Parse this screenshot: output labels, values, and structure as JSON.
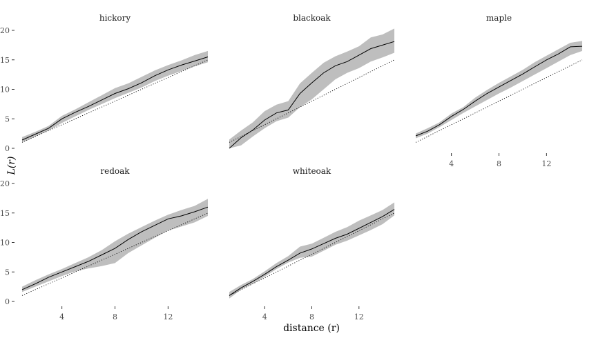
{
  "chart_data": {
    "type": "line",
    "layout": "facet-grid",
    "xlabel": "distance (r)",
    "ylabel": "L(r)",
    "xlim": [
      1,
      15
    ],
    "ylim": [
      0,
      20
    ],
    "x_ticks": [
      4,
      8,
      12
    ],
    "x_tick_labels": [
      "4",
      "8",
      "12"
    ],
    "y_ticks": [
      0,
      5,
      10,
      15,
      20
    ],
    "y_tick_labels": [
      "0",
      "5",
      "10",
      "15",
      "20"
    ],
    "grid": false,
    "colors": {
      "line": "#000000",
      "envelope": "#bebebe",
      "theoretical": "#000000"
    },
    "panels": [
      {
        "title": "hickory",
        "x": [
          1,
          2,
          3,
          4,
          5,
          6,
          7,
          8,
          9,
          10,
          11,
          12,
          13,
          14,
          15
        ],
        "observed": [
          1.4,
          2.4,
          3.4,
          5.0,
          6.1,
          7.1,
          8.2,
          9.3,
          10.1,
          11.1,
          12.3,
          13.3,
          14.1,
          14.8,
          15.5
        ],
        "envelope_low": [
          1.0,
          2.0,
          3.0,
          4.3,
          5.4,
          6.5,
          7.5,
          8.5,
          9.4,
          10.3,
          11.4,
          12.3,
          13.1,
          13.9,
          14.6
        ],
        "envelope_high": [
          1.9,
          2.8,
          3.8,
          5.5,
          6.6,
          7.8,
          9.0,
          10.2,
          11.0,
          12.1,
          13.2,
          14.1,
          14.9,
          15.8,
          16.5
        ],
        "theoretical": [
          1,
          2,
          3,
          4,
          5,
          6,
          7,
          8,
          9,
          10,
          11,
          12,
          13,
          14,
          15
        ]
      },
      {
        "title": "blackoak",
        "x": [
          1,
          2,
          3,
          4,
          5,
          6,
          7,
          8,
          9,
          10,
          11,
          12,
          13,
          14,
          15
        ],
        "observed": [
          0.0,
          1.8,
          3.1,
          4.8,
          6.0,
          6.5,
          9.3,
          11.1,
          12.8,
          14.0,
          14.7,
          15.8,
          16.9,
          17.5,
          18.1
        ],
        "envelope_low": [
          0.0,
          0.5,
          2.0,
          3.4,
          4.6,
          5.2,
          7.0,
          8.3,
          10.0,
          11.7,
          12.8,
          13.6,
          14.7,
          15.4,
          16.2
        ],
        "envelope_high": [
          1.5,
          3.0,
          4.4,
          6.3,
          7.4,
          8.0,
          11.0,
          12.8,
          14.5,
          15.6,
          16.4,
          17.3,
          18.8,
          19.3,
          20.3
        ],
        "theoretical": [
          1,
          2,
          3,
          4,
          5,
          6,
          7,
          8,
          9,
          10,
          11,
          12,
          13,
          14,
          15
        ]
      },
      {
        "title": "maple",
        "x": [
          1,
          2,
          3,
          4,
          5,
          6,
          7,
          8,
          9,
          10,
          11,
          12,
          13,
          14,
          15
        ],
        "observed": [
          2.1,
          2.9,
          4.0,
          5.4,
          6.6,
          8.0,
          9.3,
          10.4,
          11.5,
          12.6,
          13.8,
          15.0,
          16.0,
          17.2,
          17.3
        ],
        "envelope_low": [
          1.7,
          2.5,
          3.6,
          4.8,
          6.0,
          7.1,
          8.2,
          9.3,
          10.3,
          11.4,
          12.5,
          13.6,
          14.7,
          15.8,
          16.5
        ],
        "envelope_high": [
          2.5,
          3.4,
          4.4,
          5.9,
          7.0,
          8.6,
          9.9,
          11.1,
          12.2,
          13.3,
          14.6,
          15.7,
          16.8,
          17.9,
          18.2
        ],
        "theoretical": [
          1,
          2,
          3,
          4,
          5,
          6,
          7,
          8,
          9,
          10,
          11,
          12,
          13,
          14,
          15
        ]
      },
      {
        "title": "redoak",
        "x": [
          1,
          2,
          3,
          4,
          5,
          6,
          7,
          8,
          9,
          10,
          11,
          12,
          13,
          14,
          15
        ],
        "observed": [
          2.0,
          3.0,
          4.1,
          5.0,
          5.9,
          6.8,
          7.9,
          9.0,
          10.5,
          11.8,
          12.9,
          14.0,
          14.5,
          15.2,
          16.0
        ],
        "envelope_low": [
          1.6,
          2.5,
          3.4,
          4.3,
          5.1,
          5.6,
          6.0,
          6.5,
          8.2,
          9.5,
          10.8,
          12.0,
          12.7,
          13.4,
          14.5
        ],
        "envelope_high": [
          2.5,
          3.6,
          4.6,
          5.5,
          6.5,
          7.5,
          8.7,
          10.2,
          11.5,
          12.6,
          13.7,
          14.7,
          15.5,
          16.2,
          17.4
        ],
        "theoretical": [
          1,
          2,
          3,
          4,
          5,
          6,
          7,
          8,
          9,
          10,
          11,
          12,
          13,
          14,
          15
        ]
      },
      {
        "title": "whiteoak",
        "x": [
          1,
          2,
          3,
          4,
          5,
          6,
          7,
          8,
          9,
          10,
          11,
          12,
          13,
          14,
          15
        ],
        "observed": [
          1.0,
          2.3,
          3.4,
          4.6,
          5.9,
          7.0,
          8.2,
          8.9,
          9.8,
          10.7,
          11.4,
          12.4,
          13.4,
          14.4,
          15.6
        ],
        "envelope_low": [
          0.5,
          2.0,
          3.0,
          4.2,
          5.5,
          6.6,
          7.4,
          7.6,
          8.6,
          9.6,
          10.3,
          11.2,
          12.1,
          13.1,
          14.6
        ],
        "envelope_high": [
          1.6,
          2.8,
          3.8,
          5.1,
          6.5,
          7.7,
          9.3,
          9.8,
          10.8,
          11.8,
          12.6,
          13.7,
          14.6,
          15.5,
          16.8
        ],
        "theoretical": [
          1,
          2,
          3,
          4,
          5,
          6,
          7,
          8,
          9,
          10,
          11,
          12,
          13,
          14,
          15
        ]
      }
    ]
  }
}
